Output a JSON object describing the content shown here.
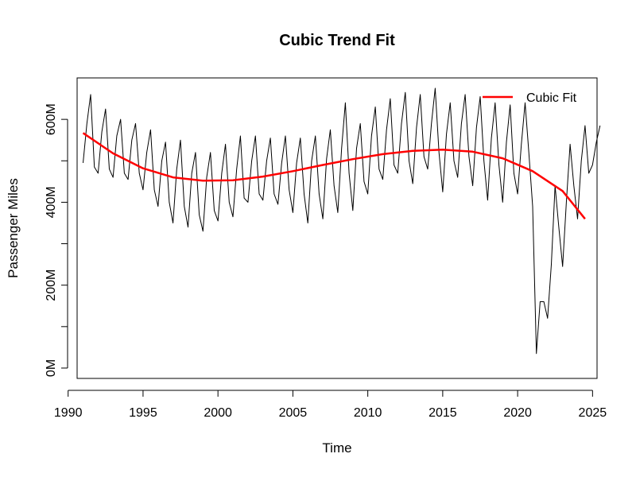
{
  "chart_data": {
    "type": "line",
    "title": "Cubic Trend Fit",
    "xlabel": "Time",
    "ylabel": "Passenger Miles",
    "xlim": [
      1990.6,
      2025.3
    ],
    "ylim": [
      -25000000,
      700000000
    ],
    "x_ticks": [
      1990,
      1995,
      2000,
      2005,
      2010,
      2015,
      2020,
      2025
    ],
    "x_tick_labels": [
      "1990",
      "1995",
      "2000",
      "2005",
      "2010",
      "2015",
      "2020",
      "2025"
    ],
    "y_ticks": [
      0,
      100000000,
      200000000,
      300000000,
      400000000,
      500000000,
      600000000
    ],
    "y_tick_labels": [
      "0M",
      "",
      "200M",
      "",
      "400M",
      "",
      "600M"
    ],
    "grid": false,
    "legend_position": "top-right",
    "series": [
      {
        "name": "",
        "color": "#000000",
        "x_start": 1991.0,
        "x_step": 0.25,
        "values": [
          495000000,
          590000000,
          660000000,
          485000000,
          470000000,
          570000000,
          625000000,
          480000000,
          460000000,
          560000000,
          600000000,
          470000000,
          455000000,
          550000000,
          590000000,
          470000000,
          430000000,
          520000000,
          575000000,
          430000000,
          390000000,
          500000000,
          545000000,
          400000000,
          350000000,
          480000000,
          550000000,
          390000000,
          340000000,
          470000000,
          520000000,
          370000000,
          330000000,
          460000000,
          520000000,
          380000000,
          355000000,
          470000000,
          540000000,
          400000000,
          365000000,
          480000000,
          560000000,
          410000000,
          400000000,
          500000000,
          560000000,
          420000000,
          405000000,
          500000000,
          555000000,
          420000000,
          395000000,
          495000000,
          560000000,
          430000000,
          375000000,
          495000000,
          555000000,
          420000000,
          350000000,
          500000000,
          560000000,
          420000000,
          360000000,
          505000000,
          575000000,
          440000000,
          375000000,
          530000000,
          640000000,
          470000000,
          380000000,
          530000000,
          590000000,
          450000000,
          420000000,
          560000000,
          630000000,
          480000000,
          455000000,
          575000000,
          650000000,
          490000000,
          470000000,
          590000000,
          665000000,
          500000000,
          445000000,
          580000000,
          660000000,
          510000000,
          480000000,
          590000000,
          675000000,
          520000000,
          425000000,
          565000000,
          640000000,
          500000000,
          460000000,
          590000000,
          660000000,
          510000000,
          440000000,
          580000000,
          655000000,
          500000000,
          405000000,
          555000000,
          640000000,
          490000000,
          400000000,
          545000000,
          635000000,
          470000000,
          420000000,
          540000000,
          640000000,
          520000000,
          390000000,
          35000000,
          160000000,
          160000000,
          120000000,
          250000000,
          440000000,
          340000000,
          245000000,
          400000000,
          540000000,
          440000000,
          360000000,
          500000000,
          585000000,
          470000000,
          490000000,
          545000000,
          585000000
        ]
      },
      {
        "name": "Cubic Fit",
        "color": "#ff0000",
        "x": [
          1991,
          1993,
          1995,
          1997,
          1999,
          2001,
          2003,
          2005,
          2007,
          2009,
          2011,
          2013,
          2015,
          2017,
          2019,
          2021,
          2023,
          2024.5
        ],
        "values": [
          567000000,
          518000000,
          482000000,
          460000000,
          452000000,
          453000000,
          462000000,
          475000000,
          490000000,
          504000000,
          516000000,
          524000000,
          527000000,
          522000000,
          506000000,
          475000000,
          427000000,
          360000000
        ]
      }
    ]
  }
}
